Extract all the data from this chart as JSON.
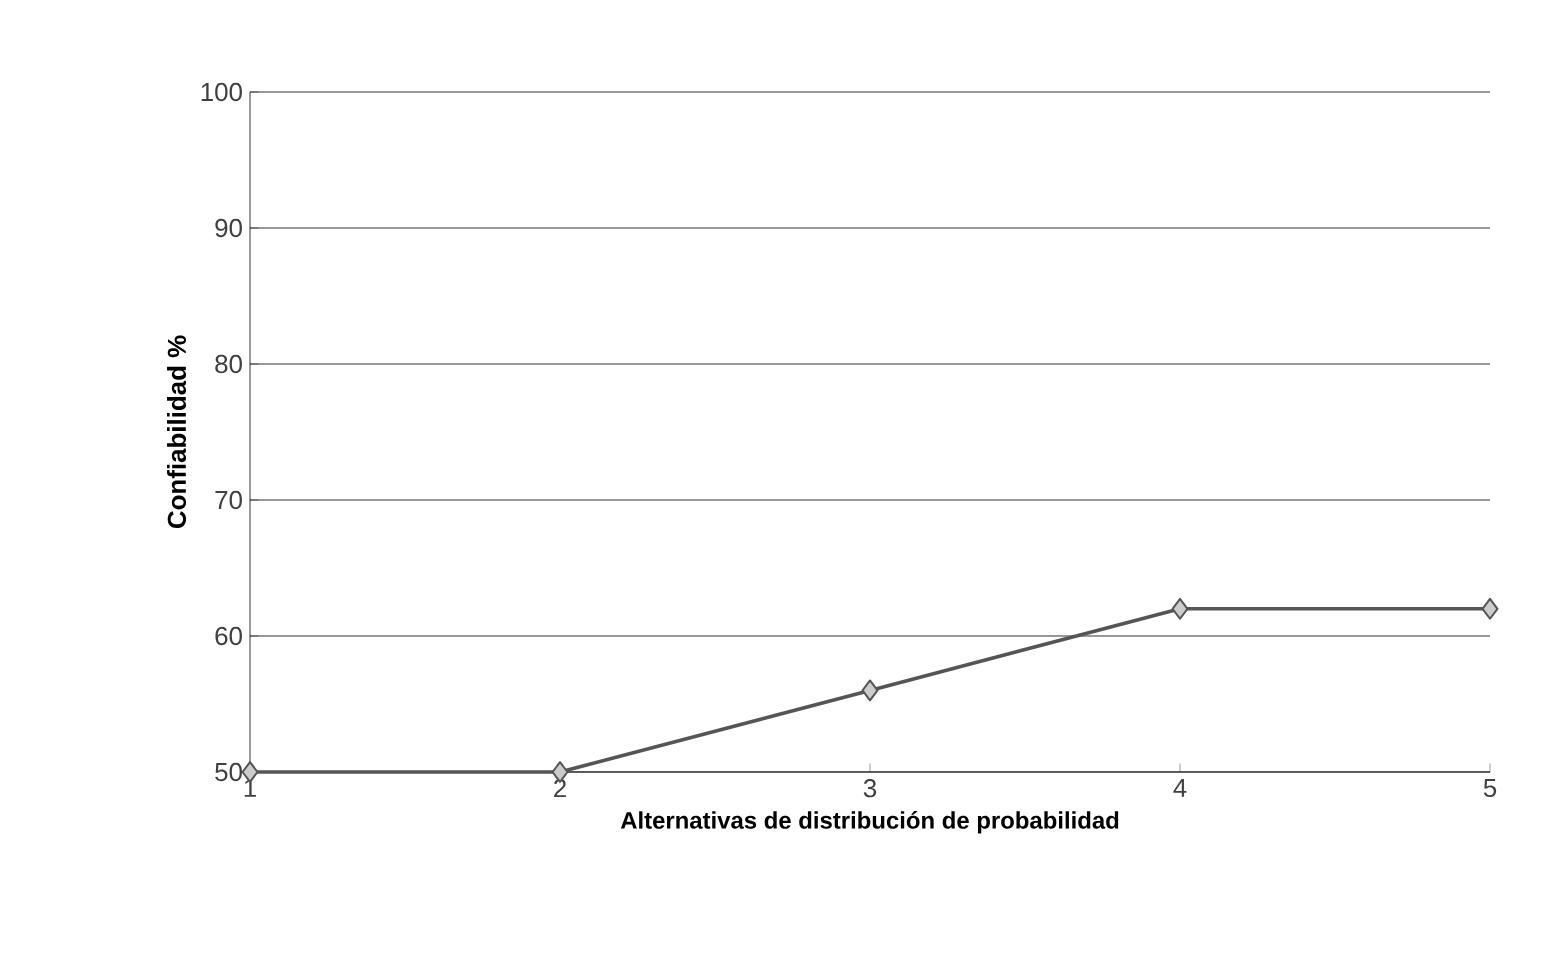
{
  "chart_data": {
    "type": "line",
    "xlabel": "Alternativas de distribución de probabilidad",
    "ylabel": "Confiabilidad %",
    "x": [
      1,
      2,
      3,
      4,
      5
    ],
    "series": [
      {
        "color": "#555555",
        "values": [
          50,
          50,
          56,
          62,
          62
        ]
      }
    ],
    "xlim": [
      1,
      5
    ],
    "xticks": [
      1,
      2,
      3,
      4,
      5
    ],
    "ylim": [
      50,
      100
    ],
    "yticks": [
      50,
      60,
      70,
      80,
      90,
      100
    ],
    "grid": "y",
    "marker": "diamond",
    "line_style": "solid"
  }
}
